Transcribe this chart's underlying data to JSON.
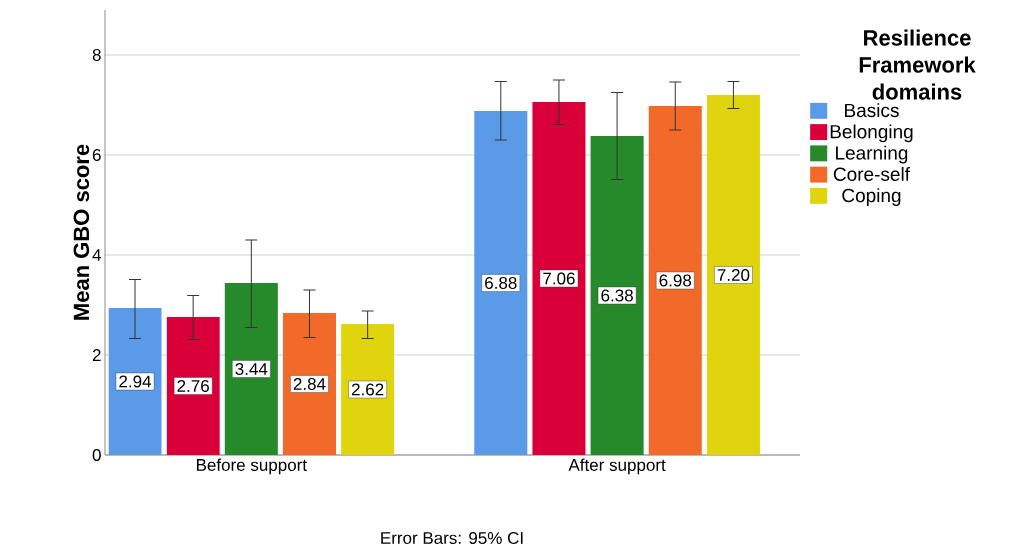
{
  "chart_data": {
    "type": "bar",
    "ylabel": "Mean GBO score",
    "legend_title": "Resilience Framework domains",
    "categories": [
      "Before support",
      "After support"
    ],
    "series": [
      {
        "name": "Basics",
        "color": "#5b9ae6",
        "values": [
          2.94,
          6.88
        ],
        "value_labels": [
          "2.94",
          "6.88"
        ],
        "errors": [
          [
            2.33,
            3.51
          ],
          [
            6.3,
            7.47
          ]
        ]
      },
      {
        "name": "Belonging",
        "color": "#d9003a",
        "values": [
          2.76,
          7.06
        ],
        "value_labels": [
          "2.76",
          "7.06"
        ],
        "errors": [
          [
            2.31,
            3.19
          ],
          [
            6.61,
            7.5
          ]
        ]
      },
      {
        "name": "Learning",
        "color": "#268a2a",
        "values": [
          3.44,
          6.38
        ],
        "value_labels": [
          "3.44",
          "6.38"
        ],
        "errors": [
          [
            2.55,
            4.3
          ],
          [
            5.51,
            7.25
          ]
        ]
      },
      {
        "name": "Core-self",
        "color": "#f26a2a",
        "values": [
          2.84,
          6.98
        ],
        "value_labels": [
          "2.84",
          "6.98"
        ],
        "errors": [
          [
            2.35,
            3.3
          ],
          [
            6.5,
            7.46
          ]
        ]
      },
      {
        "name": "Coping",
        "color": "#e0d40f",
        "values": [
          2.62,
          7.2
        ],
        "value_labels": [
          "2.62",
          "7.20"
        ],
        "errors": [
          [
            2.33,
            2.88
          ],
          [
            6.93,
            7.47
          ]
        ]
      }
    ],
    "ylim": [
      0,
      8.9
    ],
    "yticks": [
      0,
      2,
      4,
      6,
      8
    ],
    "grid": "y",
    "legend": "right",
    "annotations": [
      "Error Bars: 95% CI"
    ]
  }
}
